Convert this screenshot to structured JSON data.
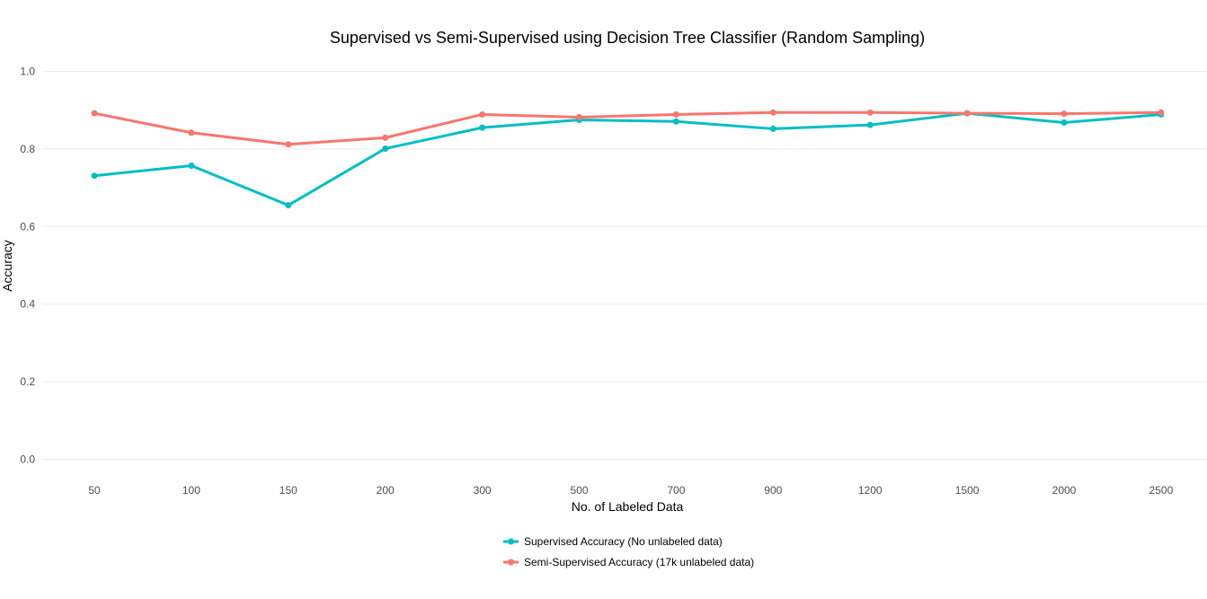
{
  "chart_data": {
    "type": "line",
    "title": "Supervised vs Semi-Supervised using Decision Tree Classifier (Random Sampling)",
    "xlabel": "No. of Labeled Data",
    "ylabel": "Accuracy",
    "categories": [
      "50",
      "100",
      "150",
      "200",
      "300",
      "500",
      "700",
      "900",
      "1200",
      "1500",
      "2000",
      "2500"
    ],
    "ylim": [
      0,
      1.0
    ],
    "yticks": [
      "0.0",
      "0.2",
      "0.4",
      "0.6",
      "0.8",
      "1.0"
    ],
    "grid": true,
    "legend_position": "bottom",
    "series": [
      {
        "name": "Supervised Accuracy (No unlabeled data)",
        "color": "#00BFC4",
        "values": [
          0.731,
          0.757,
          0.655,
          0.801,
          0.855,
          0.875,
          0.871,
          0.852,
          0.862,
          0.892,
          0.868,
          0.889
        ]
      },
      {
        "name": "Semi-Supervised Accuracy (17k unlabeled data)",
        "color": "#F8766D",
        "values": [
          0.892,
          0.842,
          0.812,
          0.829,
          0.889,
          0.882,
          0.889,
          0.894,
          0.894,
          0.892,
          0.891,
          0.894
        ]
      }
    ]
  }
}
